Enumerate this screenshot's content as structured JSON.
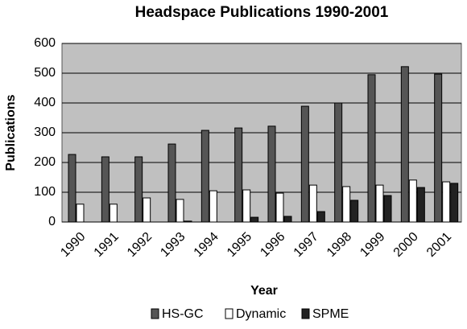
{
  "chart_data": {
    "type": "bar",
    "title": "Headspace Publications 1990-2001",
    "x_label": "Year",
    "y_label": "Publications",
    "categories": [
      "1990",
      "1991",
      "1992",
      "1993",
      "1994",
      "1995",
      "1996",
      "1997",
      "1998",
      "1999",
      "2000",
      "2001"
    ],
    "series": [
      {
        "name": "HS-GC",
        "color": "#555555",
        "values": [
          227,
          219,
          219,
          262,
          308,
          316,
          322,
          389,
          400,
          495,
          522,
          497
        ]
      },
      {
        "name": "Dynamic",
        "color": "#ffffff",
        "values": [
          60,
          60,
          81,
          76,
          105,
          108,
          97,
          124,
          119,
          124,
          141,
          135
        ]
      },
      {
        "name": "SPME",
        "color": "#222222",
        "values": [
          0,
          0,
          0,
          3,
          0,
          16,
          19,
          35,
          73,
          89,
          116,
          130
        ]
      }
    ],
    "ylim": [
      0,
      600
    ],
    "yticks": [
      0,
      100,
      200,
      300,
      400,
      500,
      600
    ],
    "grid": true,
    "legend": "bottom"
  }
}
